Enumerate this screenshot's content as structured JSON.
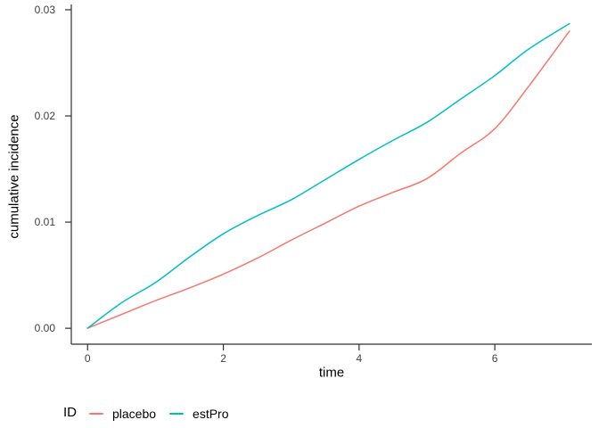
{
  "chart_data": {
    "type": "line",
    "title": "",
    "xlabel": "time",
    "ylabel": "cumulative incidence",
    "x": [
      0,
      0.5,
      1,
      1.5,
      2,
      2.5,
      3,
      3.5,
      4,
      4.5,
      5,
      5.5,
      6,
      6.5,
      7.1
    ],
    "series": [
      {
        "name": "placebo",
        "color": "#F8766D",
        "values": [
          0.0,
          0.0013,
          0.0026,
          0.0038,
          0.0051,
          0.0066,
          0.0083,
          0.0099,
          0.0115,
          0.0128,
          0.0141,
          0.0165,
          0.0188,
          0.0228,
          0.028
        ]
      },
      {
        "name": "estPro",
        "color": "#00BFC4",
        "values": [
          0.0,
          0.0024,
          0.0043,
          0.0067,
          0.0089,
          0.0106,
          0.0121,
          0.014,
          0.0159,
          0.0177,
          0.0194,
          0.0216,
          0.0238,
          0.0263,
          0.0287
        ]
      }
    ],
    "x_ticks": {
      "values": [
        0,
        2,
        4,
        6
      ],
      "labels": [
        "0",
        "2",
        "4",
        "6"
      ]
    },
    "y_ticks": {
      "values": [
        0,
        0.01,
        0.02,
        0.03
      ],
      "labels": [
        "0.00",
        "0.01",
        "0.02",
        "0.03"
      ]
    },
    "xlim": [
      -0.24,
      7.43
    ],
    "ylim": [
      -0.0015,
      0.0305
    ],
    "grid": false,
    "legend": {
      "title": "ID",
      "position": "bottom-left",
      "entries": [
        {
          "label": "placebo",
          "color": "#F8766D"
        },
        {
          "label": "estPro",
          "color": "#00BFC4"
        }
      ]
    }
  },
  "colors": {
    "axis": "#2f2f2f",
    "tick_label": "#404040",
    "text": "#000000",
    "background": "#ffffff"
  }
}
